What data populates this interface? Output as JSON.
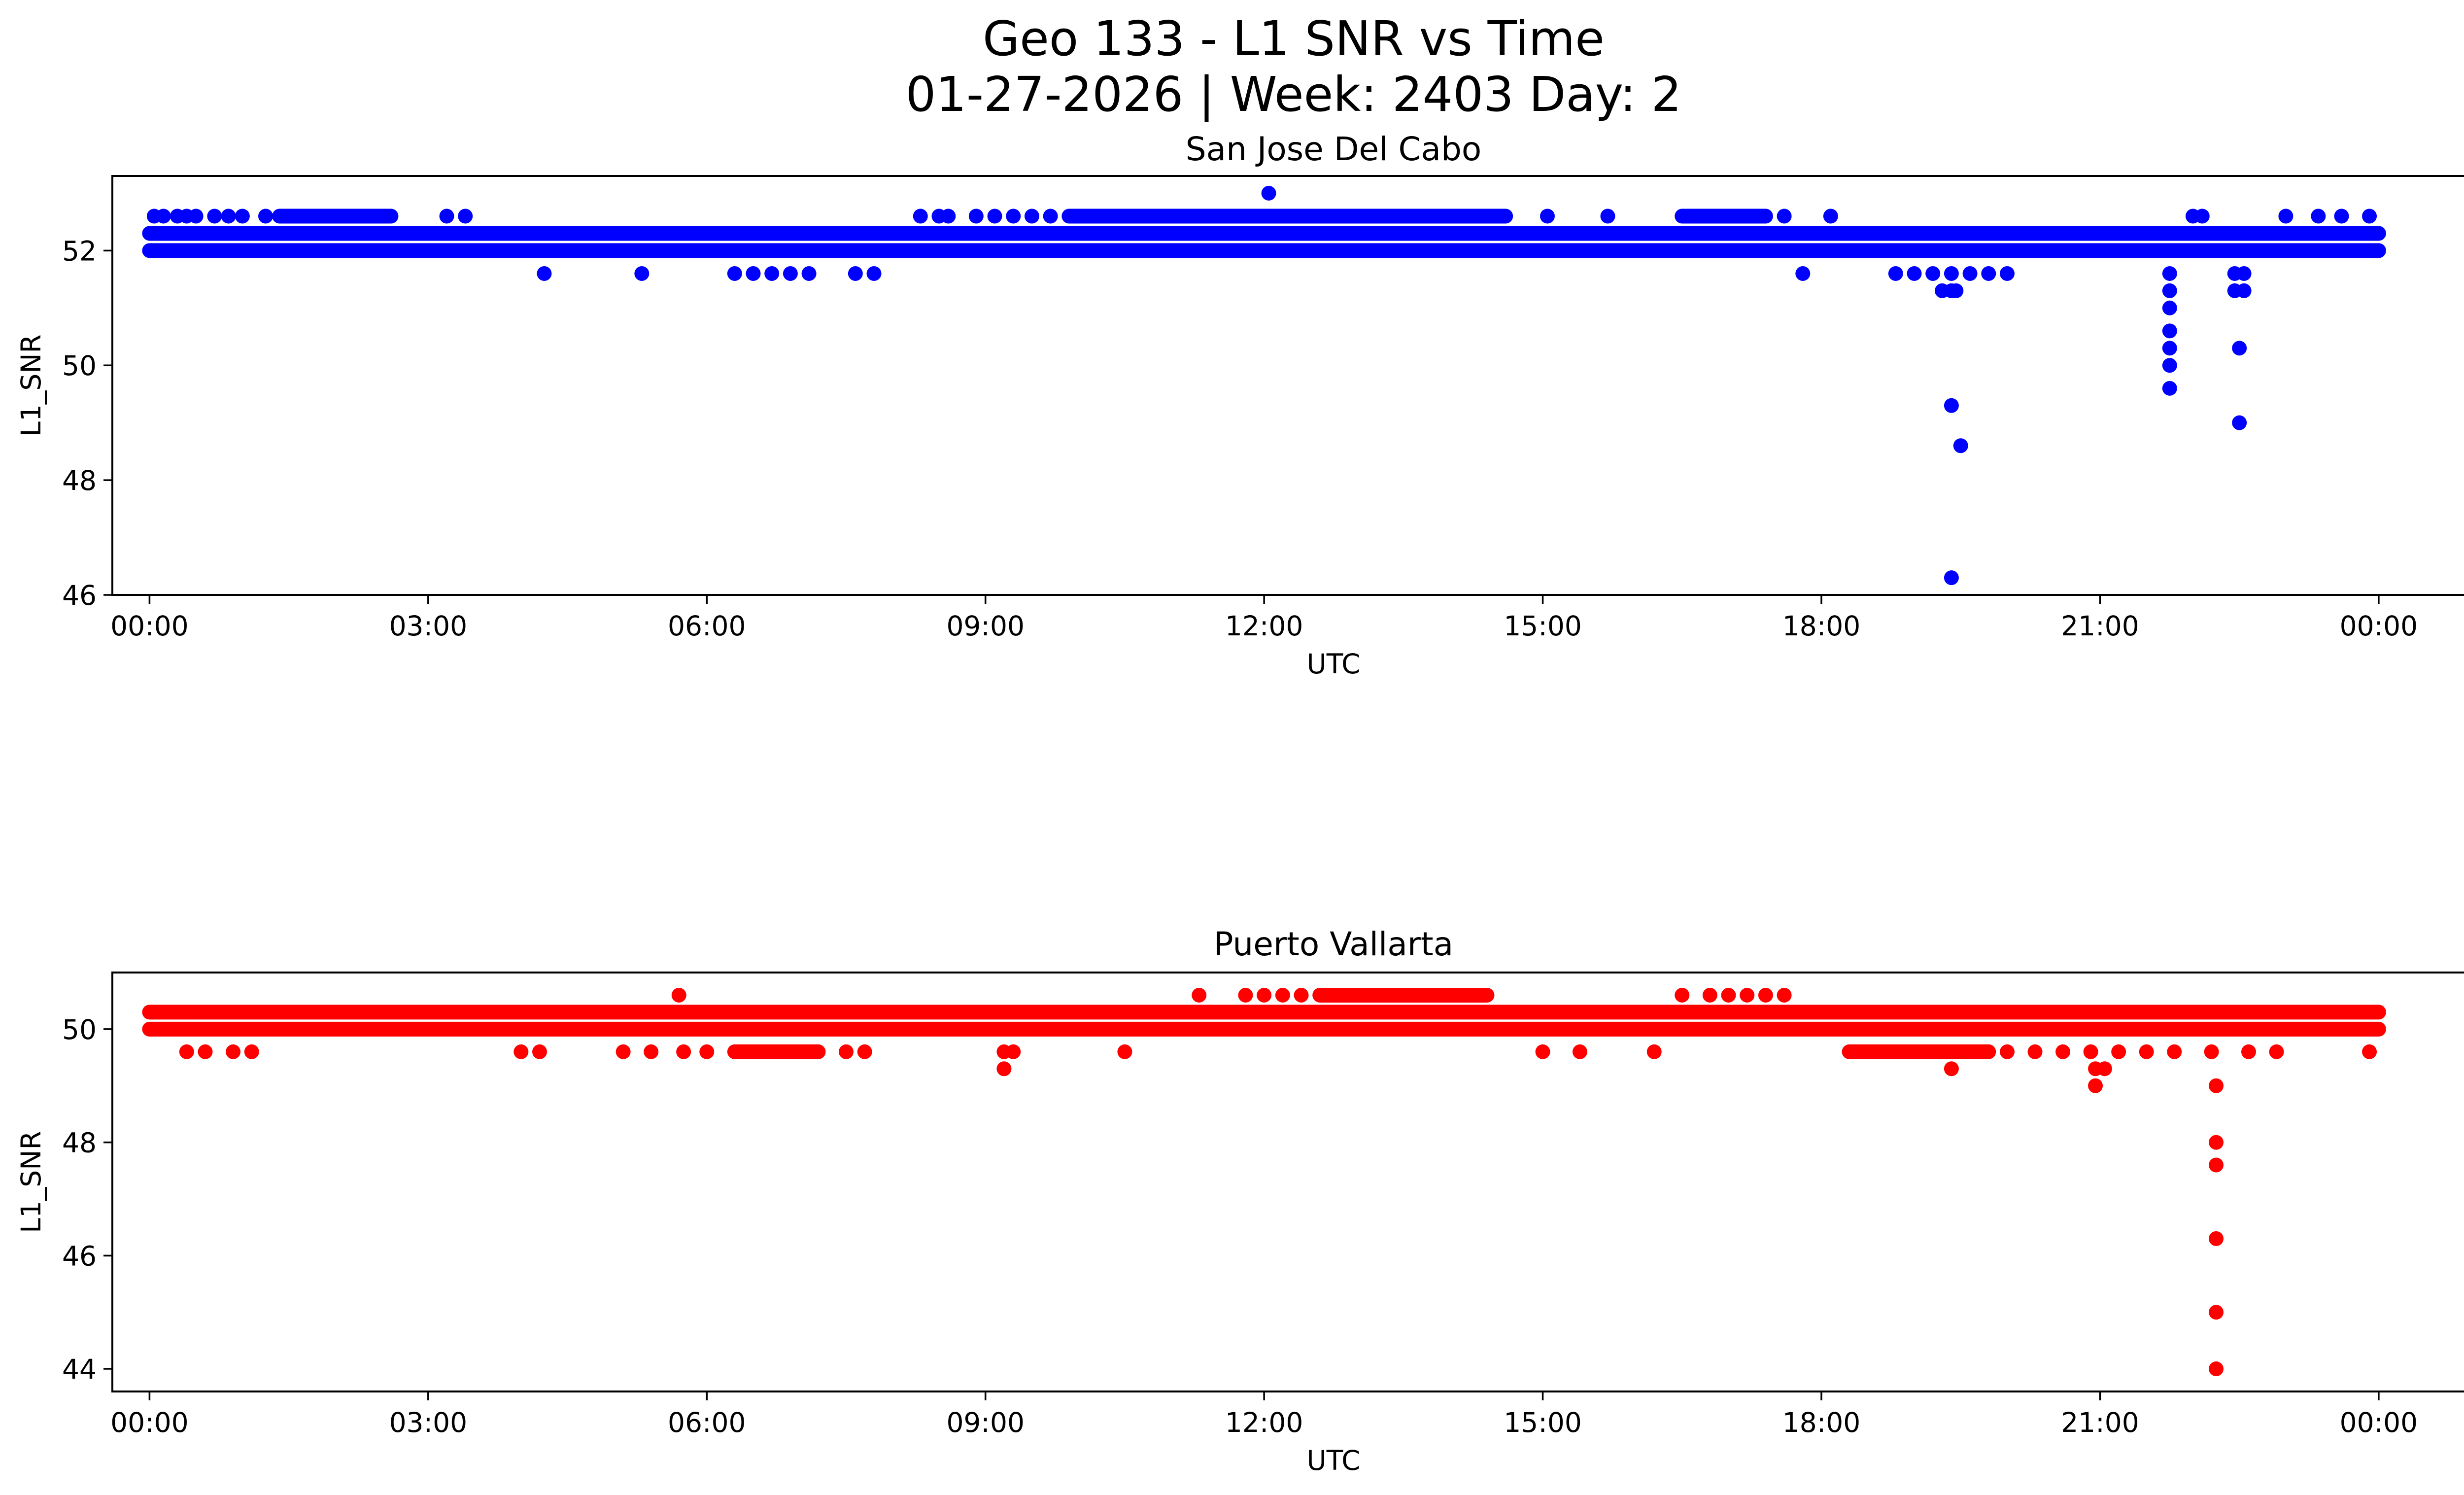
{
  "figure": {
    "title_line1": "Geo 133 - L1 SNR vs Time",
    "title_line2": "01-27-2026 | Week: 2403 Day: 2"
  },
  "chart_data": [
    {
      "type": "scatter",
      "title": "San Jose Del Cabo",
      "xlabel": "UTC",
      "ylabel": "L1_SNR",
      "color": "#0000ff",
      "xlim": [
        -0.4,
        25.9
      ],
      "ylim": [
        46.0,
        53.3
      ],
      "x_ticks": [
        0,
        3,
        6,
        9,
        12,
        15,
        18,
        21,
        24
      ],
      "x_tick_labels": [
        "00:00",
        "03:00",
        "06:00",
        "09:00",
        "12:00",
        "15:00",
        "18:00",
        "21:00",
        "00:00"
      ],
      "y_ticks": [
        46,
        48,
        50,
        52
      ],
      "y_tick_labels": [
        "46",
        "48",
        "50",
        "52"
      ],
      "bands": [
        {
          "y": 52.3,
          "from": 0,
          "to": 24
        },
        {
          "y": 52.0,
          "from": 0,
          "to": 24
        },
        {
          "y": 52.6,
          "from": 1.4,
          "to": 2.6
        },
        {
          "y": 52.6,
          "from": 9.9,
          "to": 14.6
        },
        {
          "y": 52.6,
          "from": 16.5,
          "to": 17.4
        }
      ],
      "points": [
        [
          0.05,
          52.6
        ],
        [
          0.15,
          52.6
        ],
        [
          0.3,
          52.6
        ],
        [
          0.4,
          52.6
        ],
        [
          0.5,
          52.6
        ],
        [
          0.7,
          52.6
        ],
        [
          0.85,
          52.6
        ],
        [
          1.0,
          52.6
        ],
        [
          1.25,
          52.6
        ],
        [
          3.2,
          52.6
        ],
        [
          3.4,
          52.6
        ],
        [
          8.3,
          52.6
        ],
        [
          8.5,
          52.6
        ],
        [
          8.6,
          52.6
        ],
        [
          8.9,
          52.6
        ],
        [
          9.1,
          52.6
        ],
        [
          9.3,
          52.6
        ],
        [
          9.5,
          52.6
        ],
        [
          9.7,
          52.6
        ],
        [
          15.05,
          52.6
        ],
        [
          15.7,
          52.6
        ],
        [
          17.6,
          52.6
        ],
        [
          18.1,
          52.6
        ],
        [
          22.0,
          52.6
        ],
        [
          22.1,
          52.6
        ],
        [
          23.0,
          52.6
        ],
        [
          23.35,
          52.6
        ],
        [
          23.6,
          52.6
        ],
        [
          23.9,
          52.6
        ],
        [
          12.05,
          53.0
        ],
        [
          4.25,
          51.6
        ],
        [
          5.3,
          51.6
        ],
        [
          6.3,
          51.6
        ],
        [
          6.5,
          51.6
        ],
        [
          6.7,
          51.6
        ],
        [
          6.9,
          51.6
        ],
        [
          7.1,
          51.6
        ],
        [
          7.6,
          51.6
        ],
        [
          7.8,
          51.6
        ],
        [
          17.8,
          51.6
        ],
        [
          18.8,
          51.6
        ],
        [
          19.0,
          51.6
        ],
        [
          19.2,
          51.6
        ],
        [
          19.4,
          51.6
        ],
        [
          19.6,
          51.6
        ],
        [
          19.8,
          51.6
        ],
        [
          20.0,
          51.6
        ],
        [
          19.3,
          51.3
        ],
        [
          19.4,
          51.3
        ],
        [
          19.45,
          51.3
        ],
        [
          19.4,
          49.3
        ],
        [
          19.5,
          48.6
        ],
        [
          19.4,
          46.3
        ],
        [
          21.75,
          51.6
        ],
        [
          21.75,
          51.3
        ],
        [
          21.75,
          51.0
        ],
        [
          21.75,
          50.6
        ],
        [
          21.75,
          50.3
        ],
        [
          21.75,
          50.0
        ],
        [
          21.75,
          49.6
        ],
        [
          22.45,
          51.6
        ],
        [
          22.55,
          51.6
        ],
        [
          22.45,
          51.3
        ],
        [
          22.55,
          51.3
        ],
        [
          22.5,
          50.3
        ],
        [
          22.5,
          49.0
        ]
      ]
    },
    {
      "type": "scatter",
      "title": "Puerto Vallarta",
      "xlabel": "UTC",
      "ylabel": "L1_SNR",
      "color": "#ff0000",
      "xlim": [
        -0.4,
        25.9
      ],
      "ylim": [
        43.6,
        51.0
      ],
      "x_ticks": [
        0,
        3,
        6,
        9,
        12,
        15,
        18,
        21,
        24
      ],
      "x_tick_labels": [
        "00:00",
        "03:00",
        "06:00",
        "09:00",
        "12:00",
        "15:00",
        "18:00",
        "21:00",
        "00:00"
      ],
      "y_ticks": [
        44,
        46,
        48,
        50
      ],
      "y_tick_labels": [
        "44",
        "46",
        "48",
        "50"
      ],
      "bands": [
        {
          "y": 50.3,
          "from": 0,
          "to": 24
        },
        {
          "y": 50.0,
          "from": 0,
          "to": 24
        },
        {
          "y": 50.6,
          "from": 12.6,
          "to": 14.4
        },
        {
          "y": 49.6,
          "from": 18.3,
          "to": 19.8
        },
        {
          "y": 49.6,
          "from": 6.3,
          "to": 7.2
        }
      ],
      "points": [
        [
          5.7,
          50.6
        ],
        [
          11.3,
          50.6
        ],
        [
          11.8,
          50.6
        ],
        [
          12.0,
          50.6
        ],
        [
          12.2,
          50.6
        ],
        [
          12.4,
          50.6
        ],
        [
          16.5,
          50.6
        ],
        [
          16.8,
          50.6
        ],
        [
          17.0,
          50.6
        ],
        [
          17.2,
          50.6
        ],
        [
          17.4,
          50.6
        ],
        [
          17.6,
          50.6
        ],
        [
          0.4,
          49.6
        ],
        [
          0.6,
          49.6
        ],
        [
          0.9,
          49.6
        ],
        [
          1.1,
          49.6
        ],
        [
          4.0,
          49.6
        ],
        [
          4.2,
          49.6
        ],
        [
          5.1,
          49.6
        ],
        [
          5.4,
          49.6
        ],
        [
          5.75,
          49.6
        ],
        [
          6.0,
          49.6
        ],
        [
          7.5,
          49.6
        ],
        [
          7.7,
          49.6
        ],
        [
          9.2,
          49.6
        ],
        [
          9.3,
          49.6
        ],
        [
          10.5,
          49.6
        ],
        [
          15.0,
          49.6
        ],
        [
          15.4,
          49.6
        ],
        [
          16.2,
          49.6
        ],
        [
          20.0,
          49.6
        ],
        [
          20.3,
          49.6
        ],
        [
          20.6,
          49.6
        ],
        [
          20.9,
          49.6
        ],
        [
          21.2,
          49.6
        ],
        [
          21.5,
          49.6
        ],
        [
          21.8,
          49.6
        ],
        [
          22.2,
          49.6
        ],
        [
          22.6,
          49.6
        ],
        [
          22.9,
          49.6
        ],
        [
          23.9,
          49.6
        ],
        [
          9.2,
          49.3
        ],
        [
          19.4,
          49.3
        ],
        [
          20.95,
          49.3
        ],
        [
          21.05,
          49.3
        ],
        [
          20.95,
          49.0
        ],
        [
          22.25,
          49.0
        ],
        [
          22.25,
          48.0
        ],
        [
          22.25,
          47.6
        ],
        [
          22.25,
          46.3
        ],
        [
          22.25,
          45.0
        ],
        [
          22.25,
          44.0
        ]
      ]
    }
  ]
}
